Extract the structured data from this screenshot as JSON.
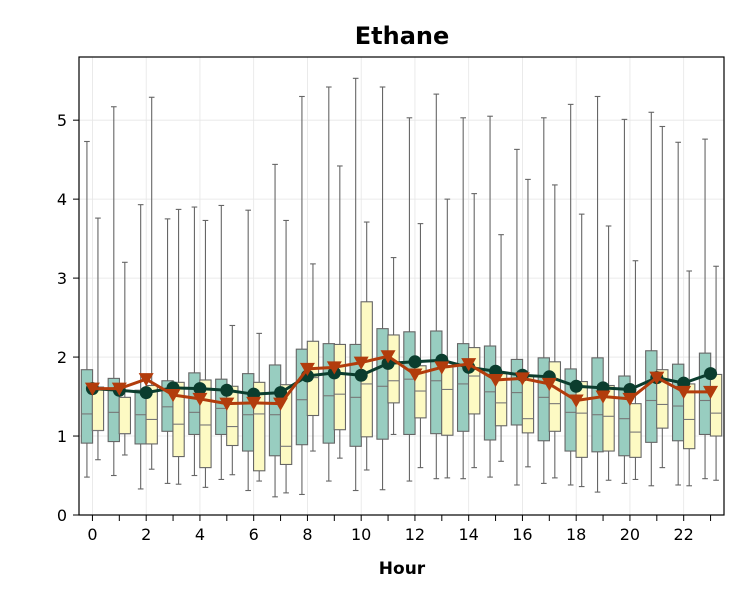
{
  "chart_data": {
    "type": "box",
    "title": "Ethane",
    "xlabel": "Hour",
    "ylabel": "",
    "ylim": [
      0,
      5.8
    ],
    "xlim": [
      -0.5,
      23.5
    ],
    "x_ticks": [
      0,
      2,
      4,
      6,
      8,
      10,
      12,
      14,
      16,
      18,
      20,
      22
    ],
    "y_ticks": [
      0,
      1,
      2,
      3,
      4,
      5
    ],
    "grid": true,
    "hours": [
      0,
      1,
      2,
      3,
      4,
      5,
      6,
      7,
      8,
      9,
      10,
      11,
      12,
      13,
      14,
      15,
      16,
      17,
      18,
      19,
      20,
      21,
      22,
      23
    ],
    "colors": {
      "box_a": "#98cdc0",
      "box_b": "#fdfac3",
      "box_edge": "#666666",
      "median": "#777777",
      "line_a": "#0b3d2e",
      "line_b": "#b23c0c"
    },
    "series": [
      {
        "box_color": "#98cdc0",
        "line_color": "#0b3d2e",
        "marker": "circle",
        "boxes": [
          {
            "whislo": 0.48,
            "q1": 0.91,
            "med": 1.28,
            "q3": 1.84,
            "whishi": 4.73
          },
          {
            "whislo": 0.5,
            "q1": 0.93,
            "med": 1.3,
            "q3": 1.73,
            "whishi": 5.17
          },
          {
            "whislo": 0.33,
            "q1": 0.9,
            "med": 1.27,
            "q3": 1.58,
            "whishi": 3.93
          },
          {
            "whislo": 0.4,
            "q1": 1.06,
            "med": 1.37,
            "q3": 1.7,
            "whishi": 3.75
          },
          {
            "whislo": 0.5,
            "q1": 1.02,
            "med": 1.3,
            "q3": 1.8,
            "whishi": 3.9
          },
          {
            "whislo": 0.45,
            "q1": 1.02,
            "med": 1.35,
            "q3": 1.72,
            "whishi": 3.92
          },
          {
            "whislo": 0.31,
            "q1": 0.81,
            "med": 1.27,
            "q3": 1.79,
            "whishi": 3.86
          },
          {
            "whislo": 0.23,
            "q1": 0.75,
            "med": 1.27,
            "q3": 1.9,
            "whishi": 4.44
          },
          {
            "whislo": 0.26,
            "q1": 0.89,
            "med": 1.46,
            "q3": 2.1,
            "whishi": 5.3
          },
          {
            "whislo": 0.43,
            "q1": 0.91,
            "med": 1.51,
            "q3": 2.17,
            "whishi": 5.42
          },
          {
            "whislo": 0.31,
            "q1": 0.87,
            "med": 1.49,
            "q3": 2.16,
            "whishi": 5.53
          },
          {
            "whislo": 0.32,
            "q1": 0.96,
            "med": 1.63,
            "q3": 2.36,
            "whishi": 5.42
          },
          {
            "whislo": 0.43,
            "q1": 1.02,
            "med": 1.72,
            "q3": 2.32,
            "whishi": 5.03
          },
          {
            "whislo": 0.46,
            "q1": 1.03,
            "med": 1.7,
            "q3": 2.33,
            "whishi": 5.33
          },
          {
            "whislo": 0.46,
            "q1": 1.06,
            "med": 1.66,
            "q3": 2.17,
            "whishi": 5.03
          },
          {
            "whislo": 0.48,
            "q1": 0.95,
            "med": 1.56,
            "q3": 2.14,
            "whishi": 5.05
          },
          {
            "whislo": 0.38,
            "q1": 1.14,
            "med": 1.55,
            "q3": 1.97,
            "whishi": 4.63
          },
          {
            "whislo": 0.4,
            "q1": 0.94,
            "med": 1.49,
            "q3": 1.99,
            "whishi": 5.03
          },
          {
            "whislo": 0.38,
            "q1": 0.81,
            "med": 1.3,
            "q3": 1.85,
            "whishi": 5.2
          },
          {
            "whislo": 0.29,
            "q1": 0.8,
            "med": 1.27,
            "q3": 1.99,
            "whishi": 5.3
          },
          {
            "whislo": 0.4,
            "q1": 0.75,
            "med": 1.22,
            "q3": 1.76,
            "whishi": 5.01
          },
          {
            "whislo": 0.37,
            "q1": 0.92,
            "med": 1.45,
            "q3": 2.08,
            "whishi": 5.1
          },
          {
            "whislo": 0.38,
            "q1": 0.94,
            "med": 1.38,
            "q3": 1.91,
            "whishi": 4.72
          },
          {
            "whislo": 0.46,
            "q1": 1.02,
            "med": 1.45,
            "q3": 2.05,
            "whishi": 4.76
          }
        ],
        "means": [
          1.6,
          1.58,
          1.55,
          1.61,
          1.6,
          1.58,
          1.53,
          1.55,
          1.76,
          1.8,
          1.77,
          1.92,
          1.94,
          1.96,
          1.87,
          1.82,
          1.77,
          1.75,
          1.63,
          1.61,
          1.59,
          1.74,
          1.67,
          1.79
        ]
      },
      {
        "box_color": "#fdfac3",
        "line_color": "#b23c0c",
        "marker": "triangle-down",
        "boxes": [
          {
            "whislo": 0.7,
            "q1": 1.07,
            "med": 1.07,
            "q3": 1.62,
            "whishi": 3.76
          },
          {
            "whislo": 0.76,
            "q1": 1.03,
            "med": 1.03,
            "q3": 1.49,
            "whishi": 3.2
          },
          {
            "whislo": 0.58,
            "q1": 0.9,
            "med": 1.21,
            "q3": 1.64,
            "whishi": 5.29
          },
          {
            "whislo": 0.39,
            "q1": 0.74,
            "med": 1.15,
            "q3": 1.68,
            "whishi": 3.87
          },
          {
            "whislo": 0.35,
            "q1": 0.6,
            "med": 1.14,
            "q3": 1.71,
            "whishi": 3.73
          },
          {
            "whislo": 0.51,
            "q1": 0.88,
            "med": 1.12,
            "q3": 1.63,
            "whishi": 2.4
          },
          {
            "whislo": 0.43,
            "q1": 0.56,
            "med": 1.28,
            "q3": 1.68,
            "whishi": 2.3
          },
          {
            "whislo": 0.28,
            "q1": 0.64,
            "med": 0.87,
            "q3": 1.65,
            "whishi": 3.73
          },
          {
            "whislo": 0.81,
            "q1": 1.26,
            "med": 1.74,
            "q3": 2.2,
            "whishi": 3.18
          },
          {
            "whislo": 0.72,
            "q1": 1.08,
            "med": 1.53,
            "q3": 2.16,
            "whishi": 4.42
          },
          {
            "whislo": 0.57,
            "q1": 0.99,
            "med": 1.66,
            "q3": 2.7,
            "whishi": 3.71
          },
          {
            "whislo": 1.02,
            "q1": 1.42,
            "med": 1.7,
            "q3": 2.28,
            "whishi": 3.26
          },
          {
            "whislo": 0.6,
            "q1": 1.23,
            "med": 1.57,
            "q3": 1.89,
            "whishi": 3.69
          },
          {
            "whislo": 0.47,
            "q1": 1.01,
            "med": 1.59,
            "q3": 1.88,
            "whishi": 4.0
          },
          {
            "whislo": 0.6,
            "q1": 1.28,
            "med": 1.76,
            "q3": 2.12,
            "whishi": 4.07
          },
          {
            "whislo": 0.68,
            "q1": 1.13,
            "med": 1.42,
            "q3": 1.79,
            "whishi": 3.55
          },
          {
            "whislo": 0.61,
            "q1": 1.04,
            "med": 1.22,
            "q3": 1.76,
            "whishi": 4.25
          },
          {
            "whislo": 0.47,
            "q1": 1.06,
            "med": 1.41,
            "q3": 1.94,
            "whishi": 4.18
          },
          {
            "whislo": 0.36,
            "q1": 0.73,
            "med": 1.29,
            "q3": 1.69,
            "whishi": 3.81
          },
          {
            "whislo": 0.44,
            "q1": 0.81,
            "med": 1.25,
            "q3": 1.64,
            "whishi": 3.66
          },
          {
            "whislo": 0.45,
            "q1": 0.73,
            "med": 1.05,
            "q3": 1.41,
            "whishi": 3.22
          },
          {
            "whislo": 0.6,
            "q1": 1.1,
            "med": 1.4,
            "q3": 1.84,
            "whishi": 4.92
          },
          {
            "whislo": 0.37,
            "q1": 0.84,
            "med": 1.21,
            "q3": 1.66,
            "whishi": 3.09
          },
          {
            "whislo": 0.44,
            "q1": 1.0,
            "med": 1.29,
            "q3": 1.78,
            "whishi": 3.15
          }
        ],
        "means": [
          1.6,
          1.6,
          1.72,
          1.52,
          1.47,
          1.41,
          1.42,
          1.41,
          1.85,
          1.87,
          1.93,
          2.01,
          1.78,
          1.87,
          1.91,
          1.71,
          1.73,
          1.66,
          1.45,
          1.5,
          1.47,
          1.74,
          1.56,
          1.56
        ]
      }
    ]
  }
}
